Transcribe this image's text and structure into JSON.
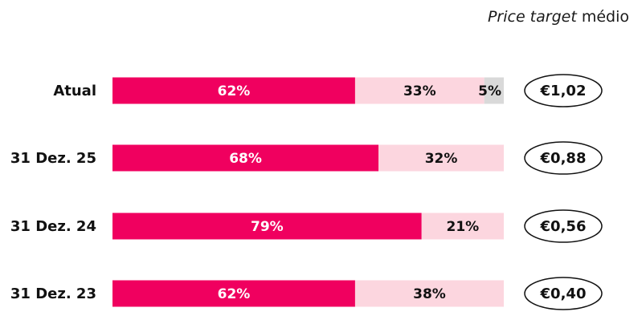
{
  "chart_data": {
    "type": "bar",
    "stacked": true,
    "orientation": "horizontal",
    "header": {
      "italic_part": "Price target",
      "normal_part": "médio"
    },
    "categories": [
      "Atual",
      "31 Dez. 25",
      "31 Dez. 24",
      "31 Dez. 23"
    ],
    "series": [
      {
        "values": [
          62,
          68,
          79,
          62
        ],
        "color": "#f0005f",
        "label_color": "#ffffff"
      },
      {
        "values": [
          33,
          32,
          21,
          38
        ],
        "color": "#fcd6df",
        "label_color": "#111111"
      },
      {
        "values": [
          5,
          0,
          0,
          0
        ],
        "color": "#d9d9d9",
        "label_color": "#111111"
      }
    ],
    "value_labels": [
      [
        "62%",
        "33%",
        "5%"
      ],
      [
        "68%",
        "32%",
        ""
      ],
      [
        "79%",
        "21%",
        ""
      ],
      [
        "62%",
        "38%",
        ""
      ]
    ],
    "price_targets": [
      "€1,02",
      "€0,88",
      "€0,56",
      "€0,40"
    ],
    "xlim": [
      0,
      100
    ],
    "unit": "%"
  }
}
